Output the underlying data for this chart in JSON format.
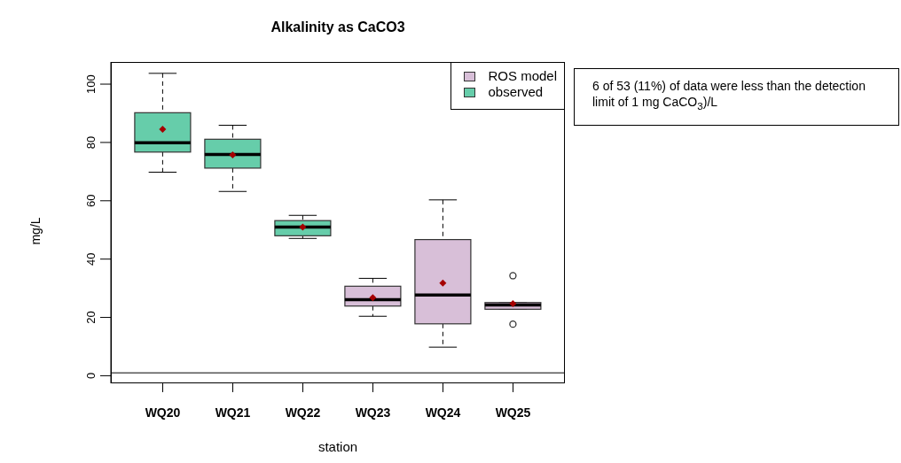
{
  "chart_data": {
    "type": "box",
    "title": "Alkalinity as CaCO3",
    "xlabel": "station",
    "ylabel": "mg/L",
    "categories": [
      "WQ20",
      "WQ21",
      "WQ22",
      "WQ23",
      "WQ24",
      "WQ25"
    ],
    "series": [
      {
        "name": "ROS model",
        "color": "#d8bfd8",
        "boxes": [
          null,
          null,
          null,
          {
            "low": 20.4,
            "q1": 23.9,
            "median": 26.1,
            "q3": 30.7,
            "high": 33.4,
            "mean": 26.8
          },
          {
            "low": 9.8,
            "q1": 17.8,
            "median": 27.7,
            "q3": 46.7,
            "high": 60.3,
            "mean": 31.8
          },
          {
            "low": 22.8,
            "q1": 22.8,
            "median": 24.3,
            "q3": 25.1,
            "high": 25.1,
            "mean": 24.7,
            "outliers": [
              34.3,
              17.7
            ]
          }
        ]
      },
      {
        "name": "observed",
        "color": "#66cdaa",
        "boxes": [
          {
            "low": 69.8,
            "q1": 76.7,
            "median": 79.9,
            "q3": 90.2,
            "high": 103.7,
            "mean": 84.5
          },
          {
            "low": 63.2,
            "q1": 71.2,
            "median": 75.9,
            "q3": 81.1,
            "high": 85.9,
            "mean": 75.7
          },
          {
            "low": 47.1,
            "q1": 48,
            "median": 51,
            "q3": 53.2,
            "high": 55,
            "mean": 51
          },
          null,
          null,
          null
        ]
      }
    ],
    "ylim": [
      -2.6,
      107.6
    ],
    "yticks": [
      0,
      20,
      40,
      60,
      80,
      100
    ],
    "ref_lines": [
      {
        "axis": "y",
        "value": 1
      }
    ],
    "legend": "top right",
    "grid": false,
    "annotations": [
      "6 of 53 (11%) of data were less than the detection limit of 1 mg CaCO$_{3}$)/L"
    ]
  }
}
